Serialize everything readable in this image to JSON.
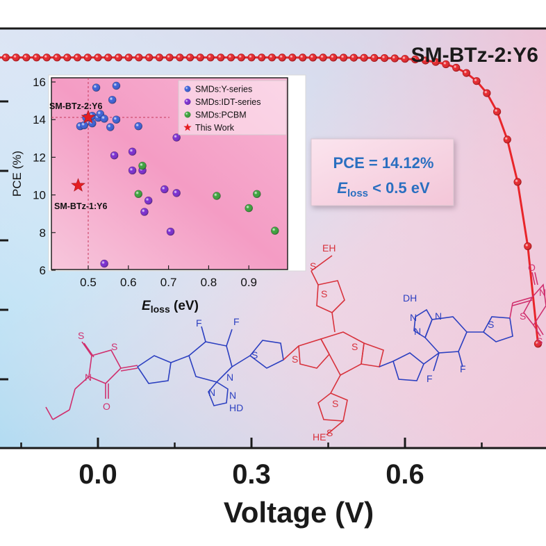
{
  "chart_data": [
    {
      "type": "line",
      "title": "SM-BTz-2:Y6",
      "xlabel": "Voltage (V)",
      "ylabel": "",
      "xlim": [
        -0.36,
        0.88
      ],
      "xticks": [
        0.0,
        0.3,
        0.6
      ],
      "xtick_labels": [
        "0.0",
        "0.3",
        "0.6"
      ],
      "ylim": [
        0,
        1
      ],
      "grid": false,
      "series": [
        {
          "name": "SM-BTz-2:Y6",
          "color": "#e8252a",
          "marker": "circle",
          "x_start": -0.36,
          "x_end": 0.86,
          "x_step": 0.02,
          "voc": 0.875,
          "shape_k": 0.048,
          "y_at_x_start": 0.988
        }
      ],
      "annotation": {
        "line1": "PCE = 14.12%",
        "line2_sym": "E",
        "line2_sub": "loss",
        "line2_rest": " < 0.5 eV"
      }
    },
    {
      "type": "scatter",
      "title": "",
      "xlabel_sym": "E",
      "xlabel_sub": "loss",
      "xlabel_rest": " (eV)",
      "ylabel": "PCE (%)",
      "xlim": [
        0.41,
        0.98
      ],
      "ylim": [
        6,
        16.5
      ],
      "xticks": [
        0.5,
        0.6,
        0.7,
        0.8,
        0.9
      ],
      "yticks": [
        6,
        8,
        10,
        12,
        14,
        16
      ],
      "grid": false,
      "legend_position": "top-right",
      "reference_lines": {
        "x": 0.5,
        "y": 14.12
      },
      "series": [
        {
          "name": "SMDs:Y-series",
          "color": "#3a5fd8",
          "marker": "sphere",
          "points": [
            [
              0.52,
              15.7
            ],
            [
              0.56,
              15.05
            ],
            [
              0.57,
              15.8
            ],
            [
              0.495,
              14.1
            ],
            [
              0.51,
              14.2
            ],
            [
              0.525,
              14.1
            ],
            [
              0.53,
              14.3
            ],
            [
              0.54,
              14.05
            ],
            [
              0.57,
              14.0
            ],
            [
              0.48,
              13.65
            ],
            [
              0.49,
              13.7
            ],
            [
              0.51,
              13.8
            ],
            [
              0.555,
              13.6
            ],
            [
              0.625,
              13.65
            ]
          ]
        },
        {
          "name": "SMDs:IDT-series",
          "color": "#7a2ad0",
          "marker": "sphere",
          "points": [
            [
              0.565,
              12.1
            ],
            [
              0.61,
              12.3
            ],
            [
              0.72,
              13.05
            ],
            [
              0.61,
              11.3
            ],
            [
              0.635,
              11.3
            ],
            [
              0.69,
              10.3
            ],
            [
              0.72,
              10.1
            ],
            [
              0.65,
              9.7
            ],
            [
              0.64,
              9.1
            ],
            [
              0.705,
              8.05
            ],
            [
              0.54,
              6.35
            ]
          ]
        },
        {
          "name": "SMDs:PCBM",
          "color": "#3aa23a",
          "marker": "sphere",
          "points": [
            [
              0.635,
              11.55
            ],
            [
              0.625,
              10.05
            ],
            [
              0.82,
              9.95
            ],
            [
              0.92,
              10.05
            ],
            [
              0.9,
              9.3
            ],
            [
              0.965,
              8.1
            ]
          ]
        },
        {
          "name": "This Work",
          "color": "#e41d22",
          "marker": "star",
          "points": [
            [
              0.5,
              14.12
            ],
            [
              0.475,
              10.5
            ]
          ]
        }
      ],
      "point_labels": [
        "SM-BTz-2:Y6",
        "SM-BTz-1:Y6"
      ]
    }
  ],
  "molecule": {
    "end_groups": [
      "S",
      "S",
      "N",
      "O",
      "S",
      "S",
      "N",
      "O"
    ],
    "btz_left": [
      "F",
      "F",
      "N",
      "N",
      "N",
      "HD",
      "S"
    ],
    "core": [
      "S",
      "S",
      "S",
      "S",
      "S",
      "EH",
      "S",
      "HE"
    ],
    "btz_right": [
      "DH",
      "N",
      "N",
      "N",
      "F",
      "F",
      "S"
    ]
  },
  "colors": {
    "bg_left": "#bfe6f6",
    "bg_right": "#f6b2c9",
    "curve": "#e8252a",
    "acceptor_pink": "#d0306e",
    "donor_blue": "#2b3fc0",
    "core_red": "#d8323c",
    "annotation_text": "#2a6fc0"
  }
}
